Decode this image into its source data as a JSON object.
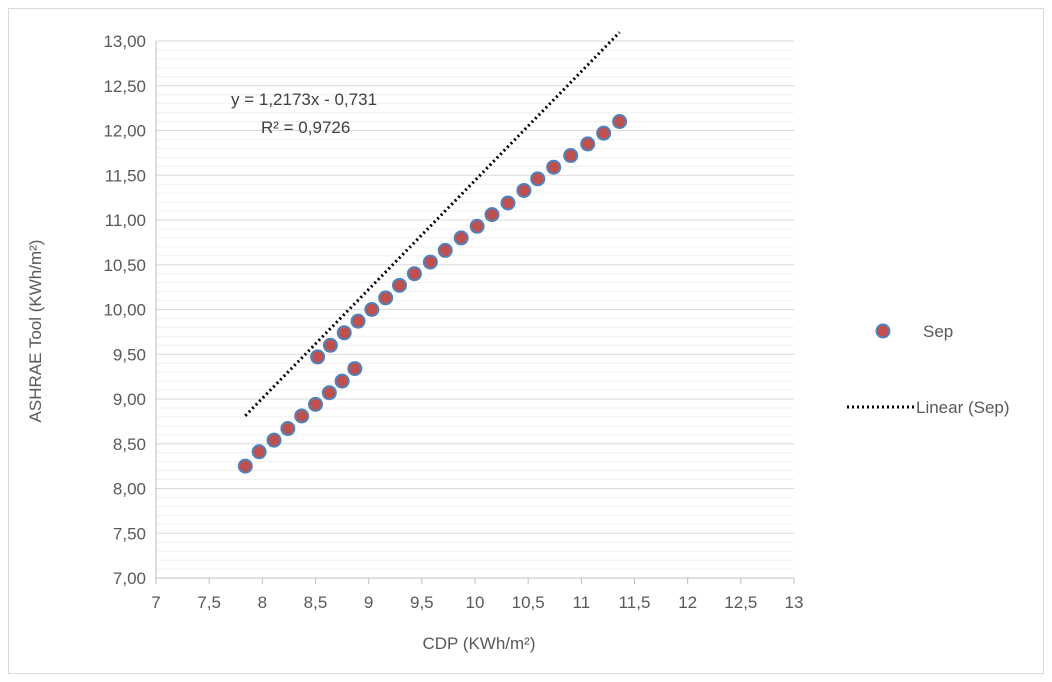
{
  "chart_data": {
    "type": "scatter",
    "xlabel": "CDP (KWh/m²)",
    "ylabel": "ASHRAE Tool (KWh/m²)",
    "xlim": [
      7,
      13
    ],
    "ylim": [
      7,
      13
    ],
    "x_ticks": [
      "7",
      "7,5",
      "8",
      "8,5",
      "9",
      "9,5",
      "10",
      "10,5",
      "11",
      "11,5",
      "12",
      "12,5",
      "13"
    ],
    "y_ticks": [
      "7,00",
      "7,50",
      "8,00",
      "8,50",
      "9,00",
      "9,50",
      "10,00",
      "10,50",
      "11,00",
      "11,50",
      "12,00",
      "12,50",
      "13,00"
    ],
    "grid": true,
    "legend_position": "right",
    "series": [
      {
        "name": "Sep",
        "marker_color": "#c0504d",
        "marker_edge": "#4f81bd",
        "points": [
          [
            7.84,
            8.25
          ],
          [
            7.97,
            8.41
          ],
          [
            8.11,
            8.54
          ],
          [
            8.24,
            8.67
          ],
          [
            8.37,
            8.81
          ],
          [
            8.5,
            8.94
          ],
          [
            8.63,
            9.07
          ],
          [
            8.75,
            9.2
          ],
          [
            8.87,
            9.34
          ],
          [
            8.52,
            9.47
          ],
          [
            8.64,
            9.6
          ],
          [
            8.77,
            9.74
          ],
          [
            8.9,
            9.87
          ],
          [
            9.03,
            10.0
          ],
          [
            9.16,
            10.13
          ],
          [
            9.29,
            10.27
          ],
          [
            9.43,
            10.4
          ],
          [
            9.58,
            10.53
          ],
          [
            9.72,
            10.66
          ],
          [
            9.87,
            10.8
          ],
          [
            10.02,
            10.93
          ],
          [
            10.16,
            11.06
          ],
          [
            10.31,
            11.19
          ],
          [
            10.46,
            11.33
          ],
          [
            10.59,
            11.46
          ],
          [
            10.74,
            11.59
          ],
          [
            10.9,
            11.72
          ],
          [
            11.06,
            11.85
          ],
          [
            11.21,
            11.97
          ],
          [
            11.36,
            12.1
          ]
        ]
      }
    ],
    "trendline": {
      "name": "Linear (Sep)",
      "slope": 1.2173,
      "intercept": -0.731,
      "x_range": [
        7.84,
        11.36
      ],
      "color": "#000000",
      "equation": "y = 1,2173x - 0,731",
      "r_squared": "R² = 0,9726"
    }
  }
}
